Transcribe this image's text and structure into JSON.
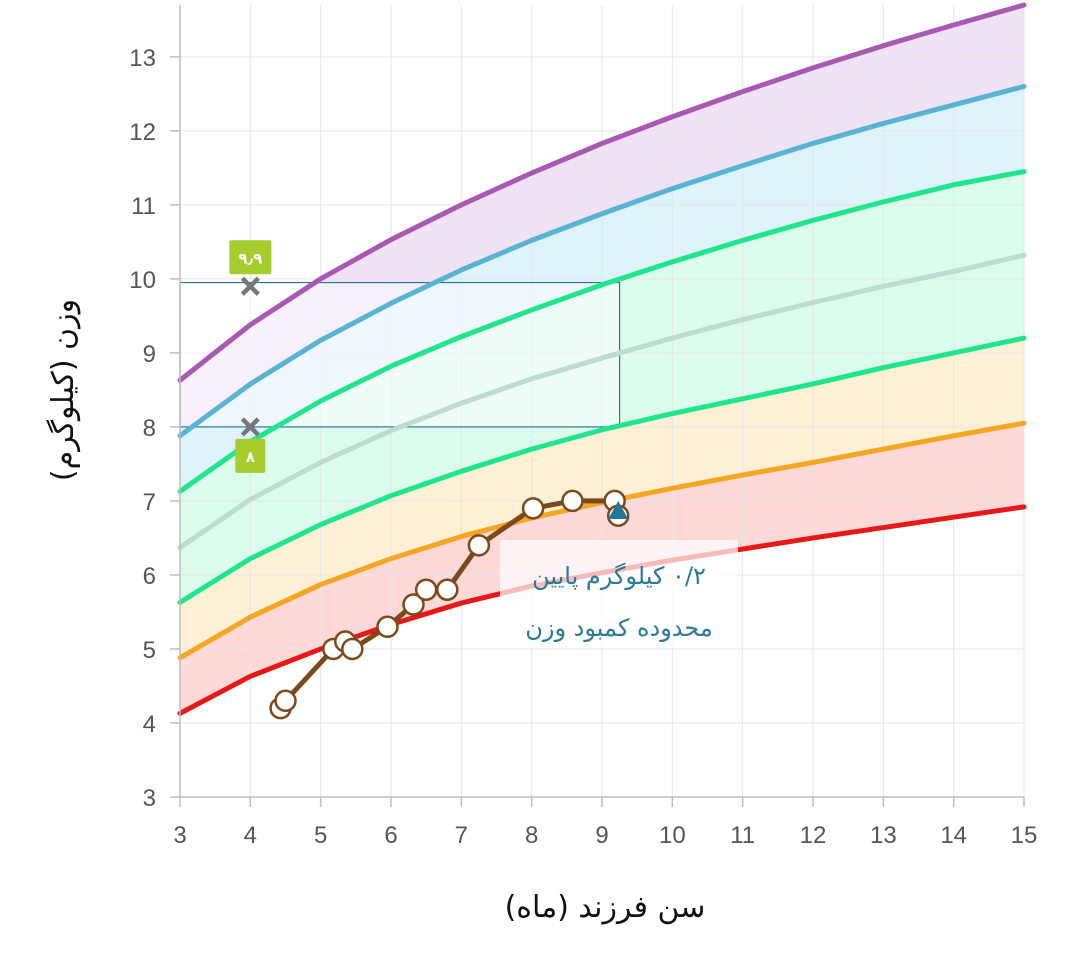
{
  "chart_data": {
    "type": "line",
    "xlabel": "سن فرزند (ماه)",
    "ylabel": "وزن (کیلوگرم)",
    "xlim": [
      3,
      15
    ],
    "ylim": [
      3,
      13.7
    ],
    "x_ticks": [
      "3",
      "4",
      "5",
      "6",
      "7",
      "8",
      "9",
      "10",
      "11",
      "12",
      "13",
      "14",
      "15"
    ],
    "y_ticks": [
      "3",
      "4",
      "5",
      "6",
      "7",
      "8",
      "9",
      "10",
      "11",
      "12",
      "13"
    ],
    "grid": true,
    "months": [
      3,
      4,
      5,
      6,
      7,
      8,
      9,
      10,
      11,
      12,
      13,
      14,
      15
    ],
    "curves": [
      {
        "key": "p_top",
        "color": "#a959b4",
        "values": [
          8.63,
          9.38,
          10.0,
          10.53,
          11.0,
          11.43,
          11.83,
          12.19,
          12.53,
          12.85,
          13.15,
          13.43,
          13.7
        ]
      },
      {
        "key": "p_upper2",
        "color": "#58b3d4",
        "values": [
          7.88,
          8.58,
          9.17,
          9.67,
          10.12,
          10.52,
          10.88,
          11.22,
          11.53,
          11.83,
          12.1,
          12.35,
          12.6
        ]
      },
      {
        "key": "p_upper1",
        "color": "#1fe68d",
        "values": [
          7.13,
          7.8,
          8.35,
          8.82,
          9.22,
          9.58,
          9.92,
          10.23,
          10.52,
          10.79,
          11.04,
          11.27,
          11.45
        ]
      },
      {
        "key": "median",
        "color": "#bcdcd0",
        "values": [
          6.37,
          7.02,
          7.52,
          7.95,
          8.32,
          8.65,
          8.93,
          9.2,
          9.45,
          9.68,
          9.9,
          10.1,
          10.32
        ]
      },
      {
        "key": "p_lower1",
        "color": "#1fe68d",
        "values": [
          5.63,
          6.22,
          6.68,
          7.07,
          7.4,
          7.7,
          7.96,
          8.18,
          8.38,
          8.58,
          8.8,
          9.0,
          9.2
        ]
      },
      {
        "key": "p_lower2",
        "color": "#f5a623",
        "values": [
          4.88,
          5.43,
          5.87,
          6.22,
          6.52,
          6.77,
          6.98,
          7.17,
          7.35,
          7.52,
          7.7,
          7.88,
          8.05
        ]
      },
      {
        "key": "p_bottom",
        "color": "#e81818",
        "values": [
          4.13,
          4.63,
          5.0,
          5.33,
          5.62,
          5.85,
          6.03,
          6.2,
          6.35,
          6.5,
          6.64,
          6.78,
          6.92
        ]
      }
    ],
    "bands": [
      {
        "from": "p_top",
        "to": "p_upper2",
        "color": "#f1e3f6"
      },
      {
        "from": "p_upper2",
        "to": "p_upper1",
        "color": "#dff3fa"
      },
      {
        "from": "p_upper1",
        "to": "p_lower1",
        "color": "#dcfcec"
      },
      {
        "from": "p_lower1",
        "to": "p_lower2",
        "color": "#fff0d6"
      },
      {
        "from": "p_lower2",
        "to": "p_bottom",
        "color": "#ffd8d8"
      }
    ],
    "child_series": {
      "color": "#7b4a1a",
      "points": [
        {
          "x": 4.43,
          "y": 4.2
        },
        {
          "x": 4.5,
          "y": 4.3
        },
        {
          "x": 5.18,
          "y": 5.0
        },
        {
          "x": 5.35,
          "y": 5.1
        },
        {
          "x": 5.45,
          "y": 5.0
        },
        {
          "x": 5.95,
          "y": 5.3
        },
        {
          "x": 6.32,
          "y": 5.6
        },
        {
          "x": 6.5,
          "y": 5.8
        },
        {
          "x": 6.8,
          "y": 5.8
        },
        {
          "x": 7.25,
          "y": 6.4
        },
        {
          "x": 8.02,
          "y": 6.9
        },
        {
          "x": 8.58,
          "y": 7.0
        },
        {
          "x": 9.18,
          "y": 7.0
        },
        {
          "x": 9.23,
          "y": 6.8
        }
      ],
      "latest_marker": {
        "x": 9.23,
        "y": 6.85,
        "color": "#1f7a96"
      }
    },
    "ideal_range": {
      "x": [
        3,
        9.25
      ],
      "y": [
        8.0,
        9.95
      ],
      "min_marker": {
        "x": 4,
        "y": 8.0,
        "label": "۸"
      },
      "max_marker": {
        "x": 4,
        "y": 9.9,
        "label": "۹٫۹"
      }
    },
    "annotation": {
      "line1": "۰/۲ کیلوگرم پایین",
      "line2": "محدوده کمبود وزن"
    }
  },
  "colors": {
    "grid": "#e6e6e6",
    "axis": "#bdbdbd",
    "badge": "#a7cc2e",
    "cross": "#777777",
    "range_stroke": "#2a7a96"
  }
}
